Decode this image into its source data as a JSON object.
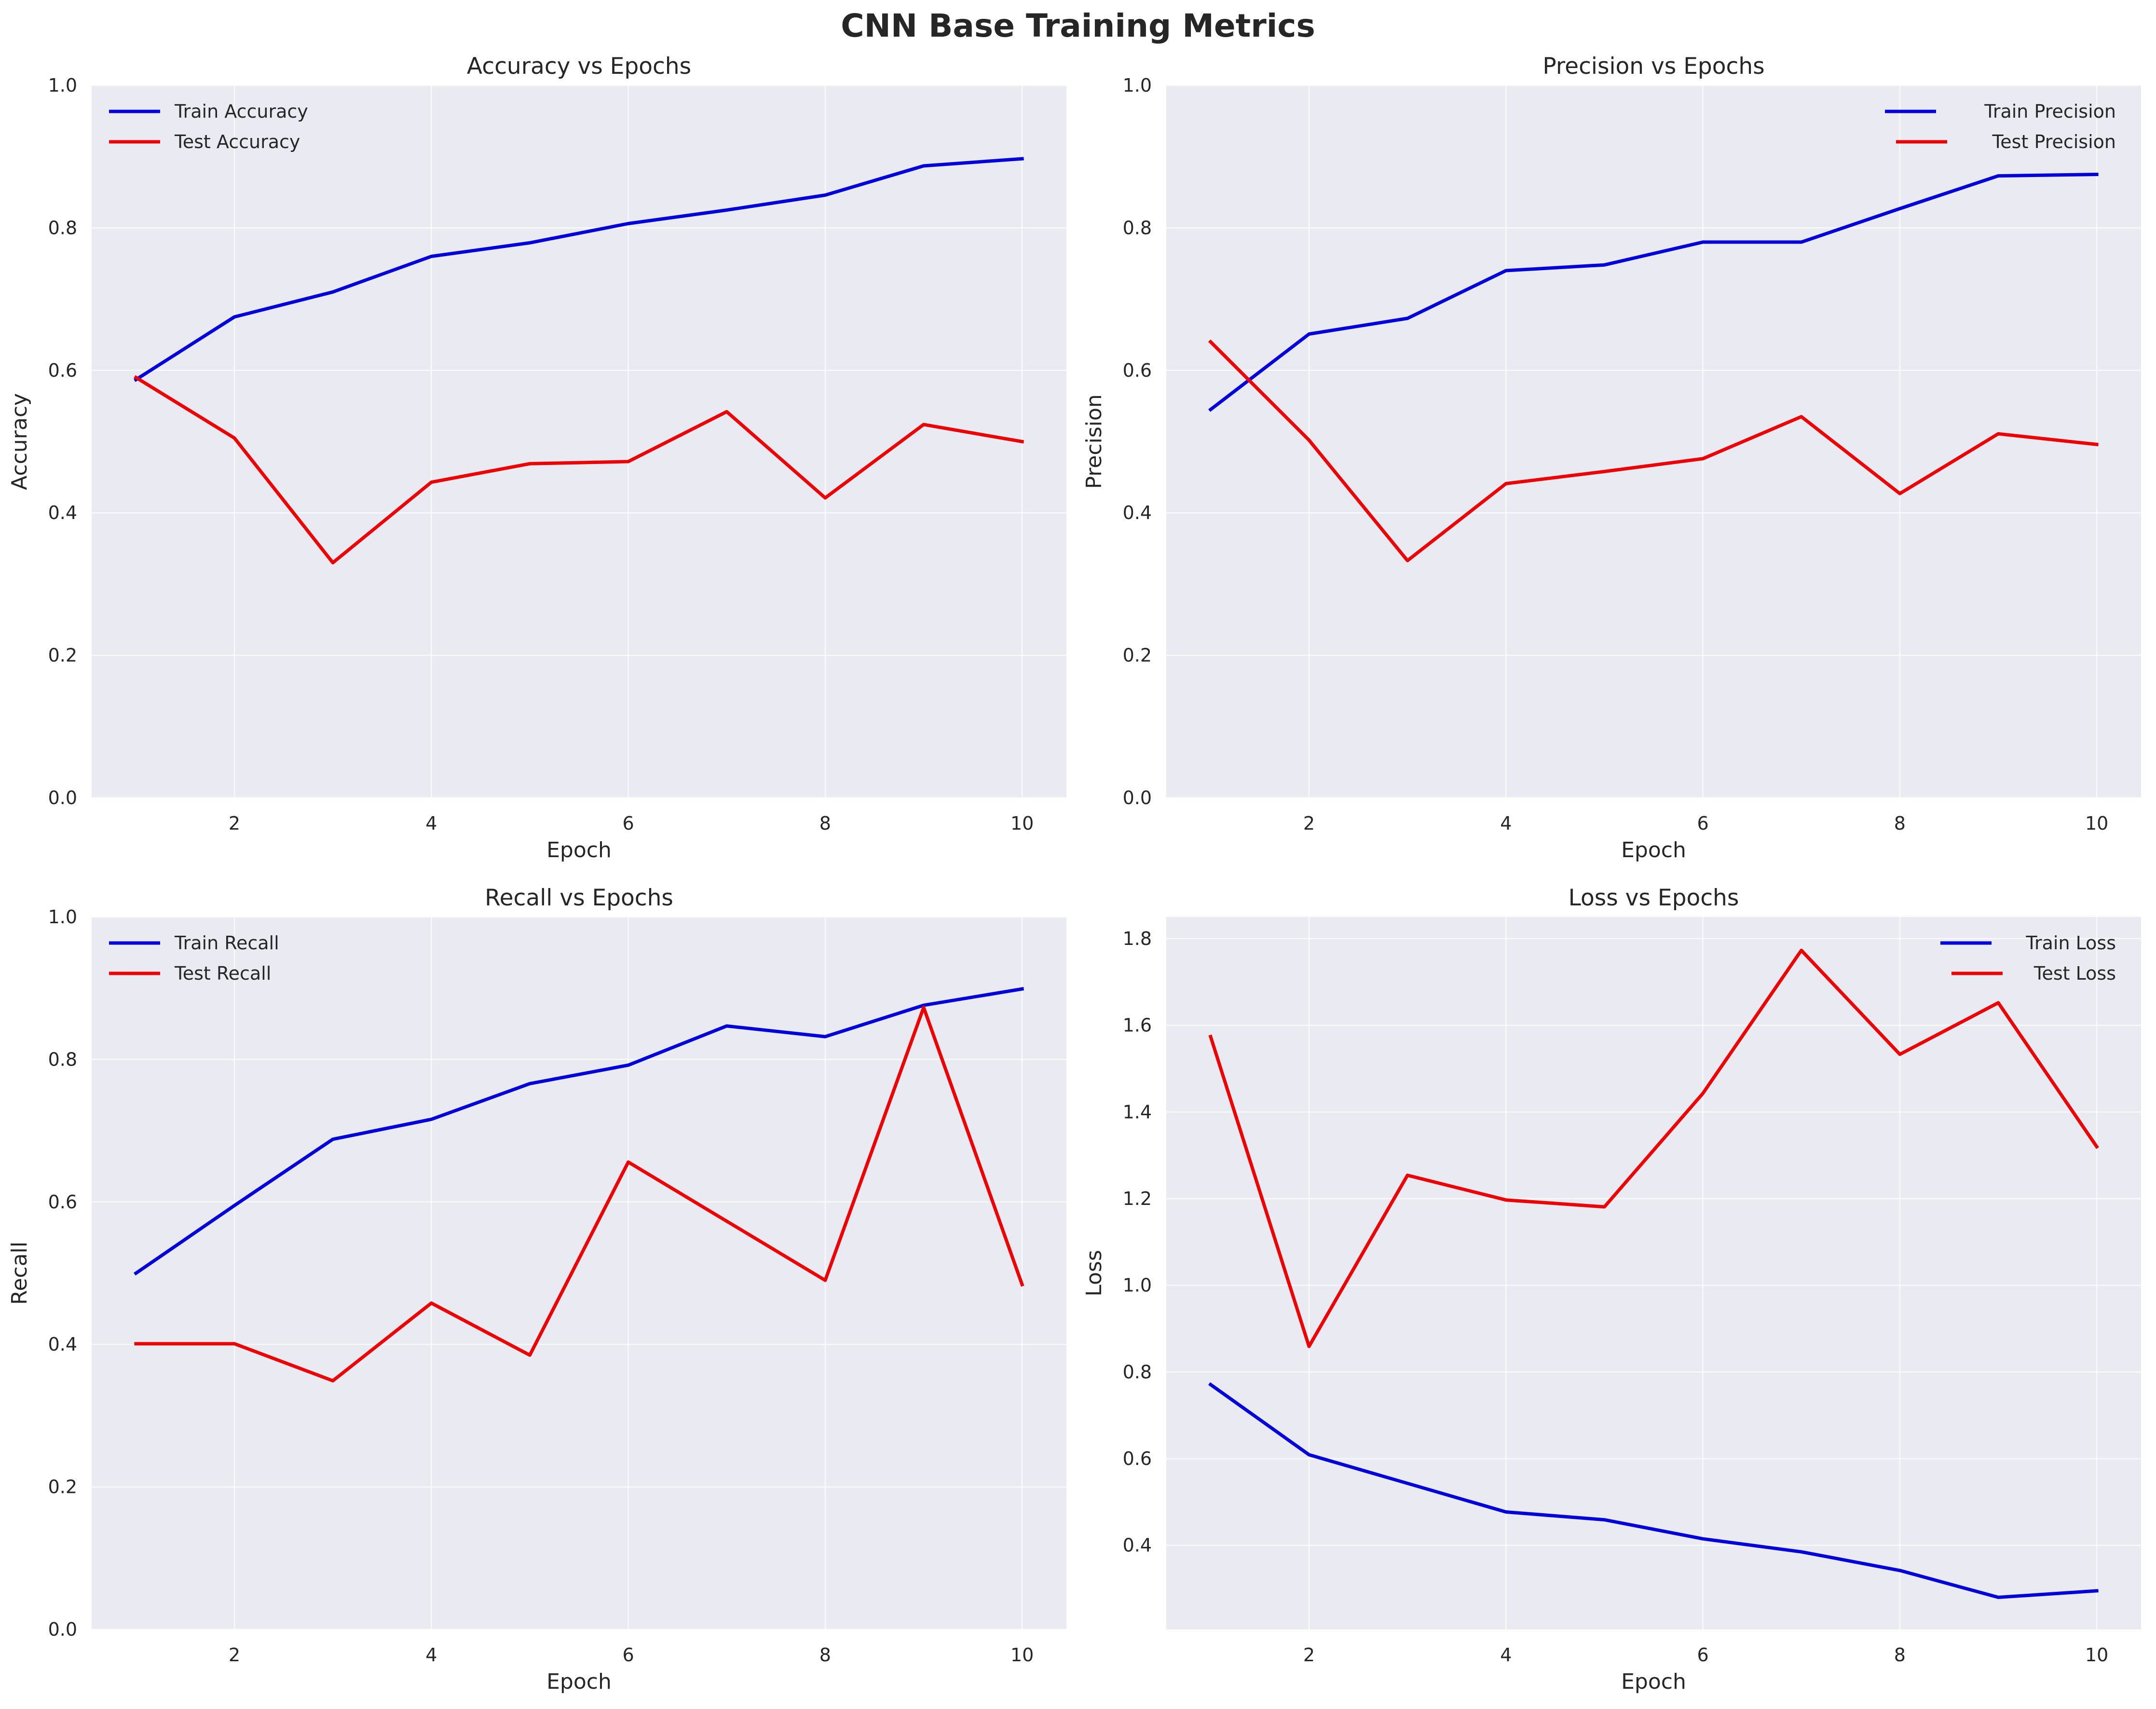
{
  "suptitle": "CNN Base Training Metrics",
  "colors": {
    "background": "#eaeaf2",
    "grid": "#ffffff",
    "train": "#0000dd",
    "test": "#ee0000",
    "text": "#262626"
  },
  "chart_data": [
    {
      "type": "line",
      "title": "Accuracy vs Epochs",
      "xlabel": "Epoch",
      "ylabel": "Accuracy",
      "x": [
        1,
        2,
        3,
        4,
        5,
        6,
        7,
        8,
        9,
        10
      ],
      "xlim": [
        0.55,
        10.45
      ],
      "ylim": [
        0.0,
        1.0
      ],
      "xticks": [
        2,
        4,
        6,
        8,
        10
      ],
      "xtick_labels": [
        "2",
        "4",
        "6",
        "8",
        "10"
      ],
      "yticks": [
        0.0,
        0.2,
        0.4,
        0.6,
        0.8,
        1.0
      ],
      "ytick_labels": [
        "0.0",
        "0.2",
        "0.4",
        "0.6",
        "0.8",
        "1.0"
      ],
      "grid": true,
      "legend_position": "upper-left",
      "series": [
        {
          "name": "Train Accuracy",
          "color": "#0000dd",
          "values": [
            0.587,
            0.675,
            0.71,
            0.76,
            0.779,
            0.806,
            0.825,
            0.846,
            0.887,
            0.897
          ]
        },
        {
          "name": "Test Accuracy",
          "color": "#ee0000",
          "values": [
            0.59,
            0.505,
            0.33,
            0.443,
            0.469,
            0.472,
            0.542,
            0.421,
            0.524,
            0.5
          ]
        }
      ]
    },
    {
      "type": "line",
      "title": "Precision vs Epochs",
      "xlabel": "Epoch",
      "ylabel": "Precision",
      "x": [
        1,
        2,
        3,
        4,
        5,
        6,
        7,
        8,
        9,
        10
      ],
      "xlim": [
        0.55,
        10.45
      ],
      "ylim": [
        0.0,
        1.0
      ],
      "xticks": [
        2,
        4,
        6,
        8,
        10
      ],
      "xtick_labels": [
        "2",
        "4",
        "6",
        "8",
        "10"
      ],
      "yticks": [
        0.0,
        0.2,
        0.4,
        0.6,
        0.8,
        1.0
      ],
      "ytick_labels": [
        "0.0",
        "0.2",
        "0.4",
        "0.6",
        "0.8",
        "1.0"
      ],
      "grid": true,
      "legend_position": "upper-right",
      "series": [
        {
          "name": "Train Precision",
          "color": "#0000dd",
          "values": [
            0.545,
            0.651,
            0.673,
            0.74,
            0.748,
            0.78,
            0.78,
            0.827,
            0.873,
            0.875
          ]
        },
        {
          "name": "Test Precision",
          "color": "#ee0000",
          "values": [
            0.64,
            0.502,
            0.333,
            0.441,
            0.458,
            0.476,
            0.535,
            0.427,
            0.511,
            0.496
          ]
        }
      ]
    },
    {
      "type": "line",
      "title": "Recall vs Epochs",
      "xlabel": "Epoch",
      "ylabel": "Recall",
      "x": [
        1,
        2,
        3,
        4,
        5,
        6,
        7,
        8,
        9,
        10
      ],
      "xlim": [
        0.55,
        10.45
      ],
      "ylim": [
        0.0,
        1.0
      ],
      "xticks": [
        2,
        4,
        6,
        8,
        10
      ],
      "xtick_labels": [
        "2",
        "4",
        "6",
        "8",
        "10"
      ],
      "yticks": [
        0.0,
        0.2,
        0.4,
        0.6,
        0.8,
        1.0
      ],
      "ytick_labels": [
        "0.0",
        "0.2",
        "0.4",
        "0.6",
        "0.8",
        "1.0"
      ],
      "grid": true,
      "legend_position": "upper-left",
      "series": [
        {
          "name": "Train Recall",
          "color": "#0000dd",
          "values": [
            0.5,
            0.595,
            0.688,
            0.716,
            0.766,
            0.792,
            0.847,
            0.832,
            0.876,
            0.899
          ]
        },
        {
          "name": "Test Recall",
          "color": "#ee0000",
          "values": [
            0.401,
            0.401,
            0.349,
            0.458,
            0.385,
            0.656,
            0.573,
            0.49,
            0.873,
            0.484
          ]
        }
      ]
    },
    {
      "type": "line",
      "title": "Loss vs Epochs",
      "xlabel": "Epoch",
      "ylabel": "Loss",
      "x": [
        1,
        2,
        3,
        4,
        5,
        6,
        7,
        8,
        9,
        10
      ],
      "xlim": [
        0.55,
        10.45
      ],
      "ylim": [
        0.206,
        1.85
      ],
      "xticks": [
        2,
        4,
        6,
        8,
        10
      ],
      "xtick_labels": [
        "2",
        "4",
        "6",
        "8",
        "10"
      ],
      "yticks": [
        0.4,
        0.6,
        0.8,
        1.0,
        1.2,
        1.4,
        1.6,
        1.8
      ],
      "ytick_labels": [
        "0.4",
        "0.6",
        "0.8",
        "1.0",
        "1.2",
        "1.4",
        "1.6",
        "1.8"
      ],
      "grid": true,
      "legend_position": "upper-right",
      "series": [
        {
          "name": "Train Loss",
          "color": "#0000dd",
          "values": [
            0.771,
            0.609,
            0.543,
            0.477,
            0.459,
            0.415,
            0.385,
            0.342,
            0.28,
            0.295
          ]
        },
        {
          "name": "Test Loss",
          "color": "#ee0000",
          "values": [
            1.574,
            0.859,
            1.254,
            1.197,
            1.181,
            1.443,
            1.773,
            1.533,
            1.652,
            1.32
          ]
        }
      ]
    }
  ]
}
